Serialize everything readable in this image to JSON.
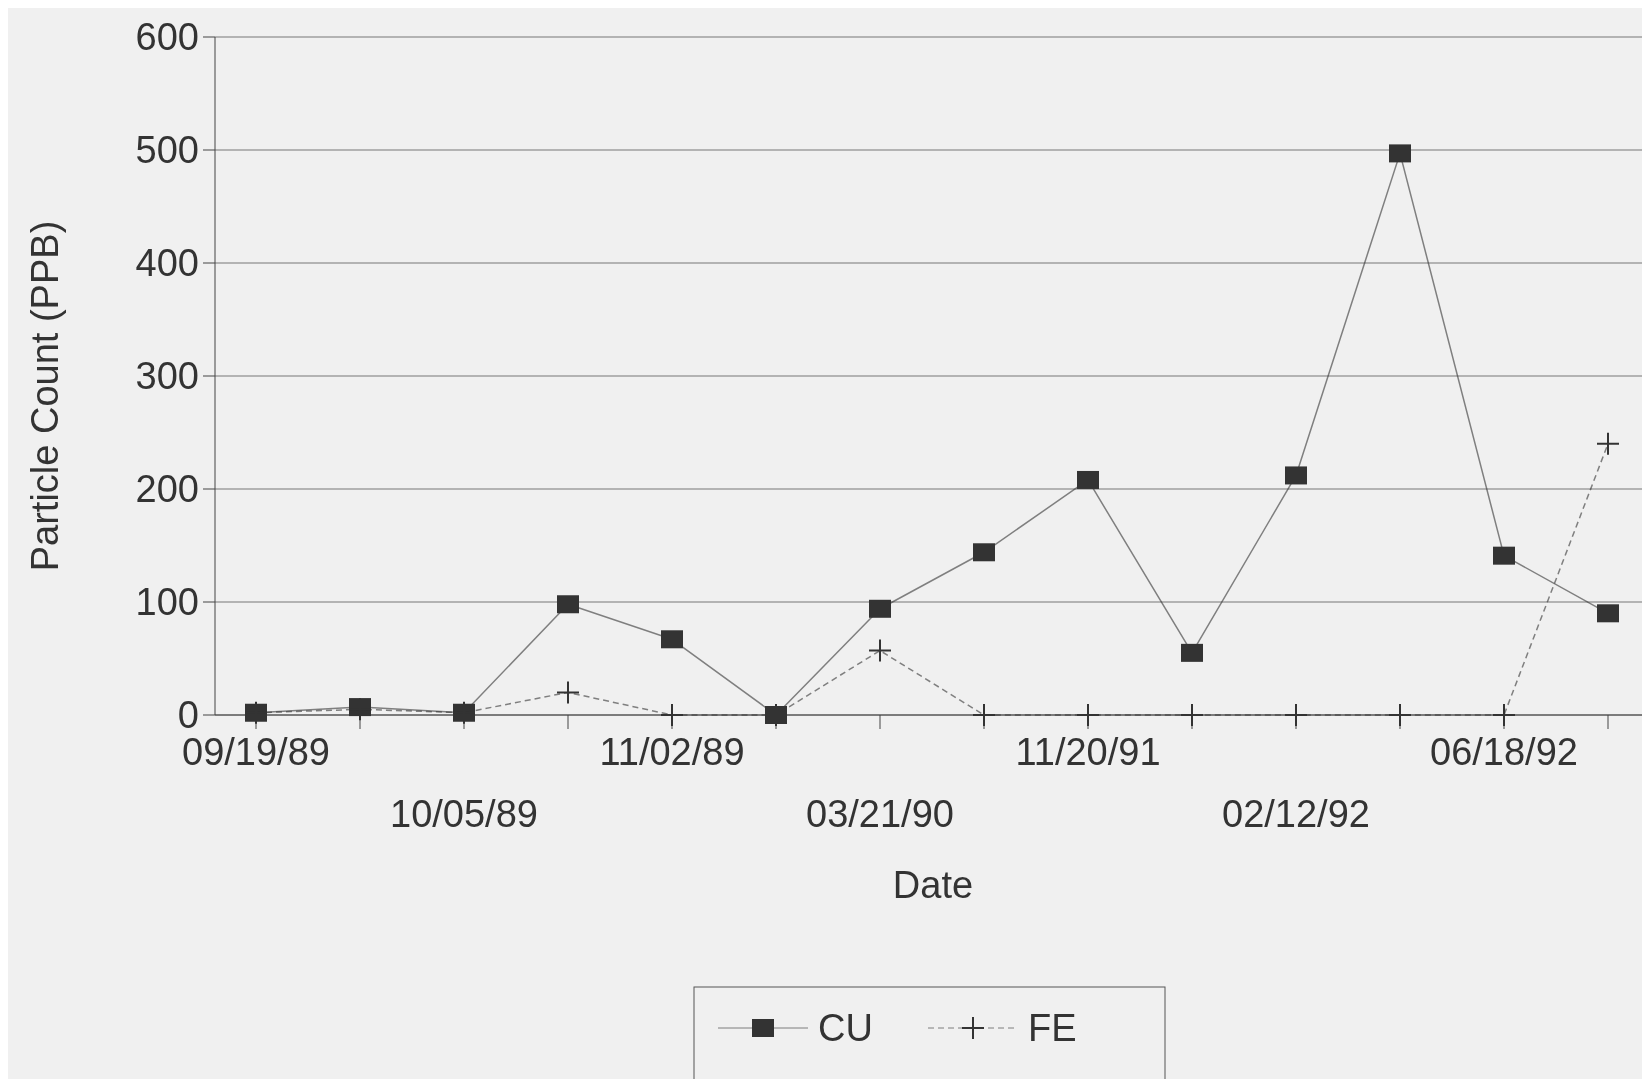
{
  "chart_data": {
    "type": "line",
    "xlabel": "Date",
    "ylabel": "Particle Count (PPB)",
    "categories": [
      "09/19/89",
      null,
      "10/05/89",
      null,
      "11/02/89",
      null,
      "03/21/90",
      null,
      "11/20/91",
      null,
      "02/12/92",
      null,
      "06/18/92",
      null
    ],
    "series": [
      {
        "name": "CU",
        "color": "#333333",
        "marker": "square",
        "line_style": "solid",
        "values": [
          2,
          7,
          2,
          98,
          67,
          0,
          94,
          144,
          208,
          55,
          212,
          497,
          141,
          90
        ]
      },
      {
        "name": "FE",
        "color": "#333333",
        "marker": "cross",
        "line_style": "dashed",
        "values": [
          2,
          5,
          2,
          20,
          0,
          0,
          57,
          0,
          0,
          0,
          0,
          0,
          0,
          240
        ]
      }
    ],
    "ylim": [
      0,
      600
    ],
    "yticks": [
      0,
      100,
      200,
      300,
      400,
      500,
      600
    ],
    "grid": "y",
    "legend": "bottom"
  }
}
